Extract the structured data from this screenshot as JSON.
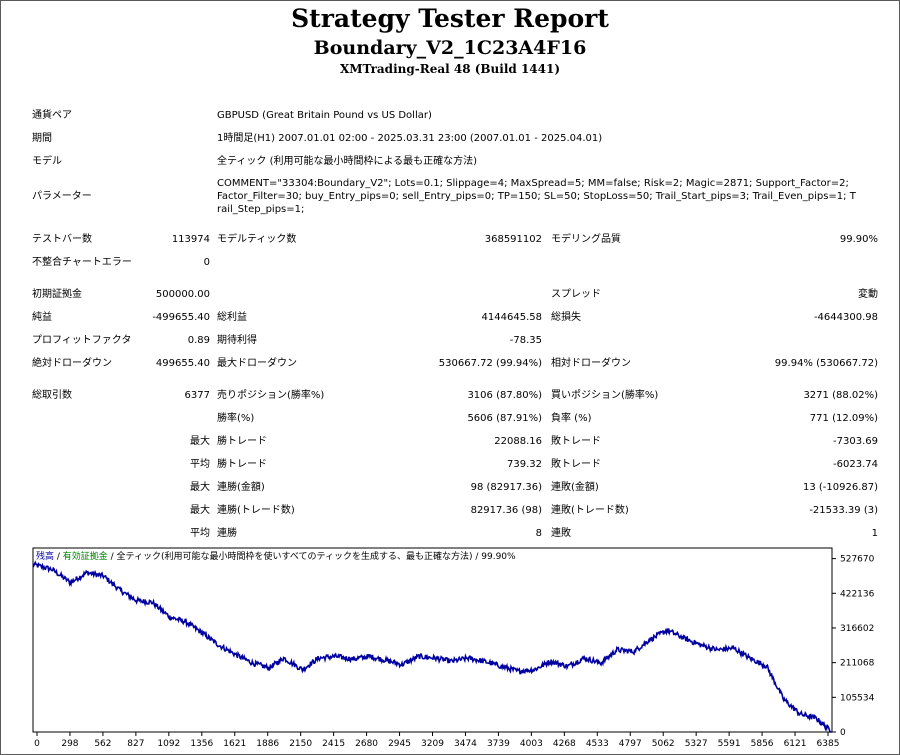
{
  "header": {
    "title": "Strategy Tester Report",
    "ea_name": "Boundary_V2_1C23A4F16",
    "server": "XMTrading-Real 48 (Build 1441)"
  },
  "info": {
    "symbol_label": "通貨ペア",
    "symbol_value": "GBPUSD (Great Britain Pound vs US Dollar)",
    "period_label": "期間",
    "period_value": "1時間足(H1) 2007.01.01 02:00 - 2025.03.31 23:00 (2007.01.01 - 2025.04.01)",
    "model_label": "モデル",
    "model_value": "全ティック (利用可能な最小時間枠による最も正確な方法)",
    "params_label": "パラメーター",
    "params_value": "COMMENT=\"33304:Boundary_V2\"; Lots=0.1; Slippage=4; MaxSpread=5; MM=false; Risk=2; Magic=2871; Support_Factor=2; Factor_Filter=30; buy_Entry_pips=0; sell_Entry_pips=0; TP=150; SL=50; StopLoss=50; Trail_Start_pips=3; Trail_Even_pips=1; Trail_Step_pips=1;"
  },
  "stats": {
    "bars_label": "テストバー数",
    "bars_value": "113974",
    "ticks_label": "モデルティック数",
    "ticks_value": "368591102",
    "quality_label": "モデリング品質",
    "quality_value": "99.90%",
    "mismatch_label": "不整合チャートエラー",
    "mismatch_value": "0",
    "deposit_label": "初期証拠金",
    "deposit_value": "500000.00",
    "spread_label": "スプレッド",
    "spread_value": "変動",
    "net_label": "純益",
    "net_value": "-499655.40",
    "gross_profit_label": "総利益",
    "gross_profit_value": "4144645.58",
    "gross_loss_label": "総損失",
    "gross_loss_value": "-4644300.98",
    "pf_label": "プロフィットファクタ",
    "pf_value": "0.89",
    "payoff_label": "期待利得",
    "payoff_value": "-78.35",
    "abs_dd_label": "絶対ドローダウン",
    "abs_dd_value": "499655.40",
    "max_dd_label": "最大ドローダウン",
    "max_dd_value": "530667.72 (99.94%)",
    "rel_dd_label": "相対ドローダウン",
    "rel_dd_value": "99.94% (530667.72)",
    "total_label": "総取引数",
    "total_value": "6377",
    "short_label": "売りポジション(勝率%)",
    "short_value": "3106 (87.80%)",
    "long_label": "買いポジション(勝率%)",
    "long_value": "3271 (88.02%)",
    "win_label": "勝率(%)",
    "win_value": "5606 (87.91%)",
    "lose_label": "負率 (%)",
    "lose_value": "771 (12.09%)",
    "q_max": "最大",
    "q_avg": "平均",
    "largest_win_label": "勝トレード",
    "largest_win_value": "22088.16",
    "largest_loss_label": "敗トレード",
    "largest_loss_value": "-7303.69",
    "avg_win_label": "勝トレード",
    "avg_win_value": "739.32",
    "avg_loss_label": "敗トレード",
    "avg_loss_value": "-6023.74",
    "max_consec_wins_label": "連勝(金額)",
    "max_consec_wins_value": "98 (82917.36)",
    "max_consec_losses_label": "連敗(金額)",
    "max_consec_losses_value": "13 (-10926.87)",
    "max_consec_profit_label": "連勝(トレード数)",
    "max_consec_profit_value": "82917.36 (98)",
    "max_consec_loss_label": "連敗(トレード数)",
    "max_consec_loss_value": "-21533.39 (3)",
    "avg_consec_wins_label": "連勝",
    "avg_consec_wins_value": "8",
    "avg_consec_losses_label": "連敗",
    "avg_consec_losses_value": "1"
  },
  "chart_data": {
    "type": "line",
    "legend": [
      {
        "text": "残高",
        "color": "#0000a0"
      },
      {
        "text": " / ",
        "color": "#000000"
      },
      {
        "text": "有効証拠金",
        "color": "#008000"
      },
      {
        "text": " / 全ティック(利用可能な最小時間枠を使いすべてのティックを生成する、最も正確な方法) / 99.90%",
        "color": "#000000"
      }
    ],
    "x_ticks": [
      "0",
      "298",
      "562",
      "827",
      "1092",
      "1356",
      "1621",
      "1886",
      "2150",
      "2415",
      "2680",
      "2945",
      "3209",
      "3474",
      "3739",
      "4003",
      "4268",
      "4533",
      "4797",
      "5062",
      "5327",
      "5591",
      "5856",
      "6121",
      "6385"
    ],
    "y_ticks": [
      "527670",
      "422136",
      "316602",
      "211068",
      "105534",
      "0"
    ],
    "xlim": [
      0,
      6377
    ],
    "ylim": [
      0,
      560000
    ],
    "series": [
      {
        "color": "#0000a0",
        "x": [
          0,
          150,
          298,
          430,
          562,
          700,
          827,
          950,
          1092,
          1220,
          1356,
          1480,
          1621,
          1750,
          1886,
          2000,
          2150,
          2280,
          2415,
          2550,
          2680,
          2800,
          2945,
          3080,
          3209,
          3340,
          3474,
          3600,
          3739,
          3870,
          4003,
          4130,
          4268,
          4400,
          4533,
          4660,
          4797,
          4920,
          5062,
          5200,
          5327,
          5460,
          5591,
          5720,
          5856,
          5990,
          6121,
          6250,
          6377
        ],
        "y": [
          510000,
          495000,
          455000,
          485000,
          475000,
          430000,
          400000,
          395000,
          350000,
          335000,
          300000,
          265000,
          235000,
          210000,
          195000,
          225000,
          190000,
          225000,
          230000,
          222000,
          230000,
          220000,
          205000,
          230000,
          225000,
          215000,
          225000,
          215000,
          200000,
          185000,
          190000,
          215000,
          200000,
          225000,
          210000,
          250000,
          245000,
          280000,
          310000,
          285000,
          265000,
          250000,
          255000,
          225000,
          200000,
          100000,
          55000,
          42000,
          0
        ]
      }
    ]
  }
}
